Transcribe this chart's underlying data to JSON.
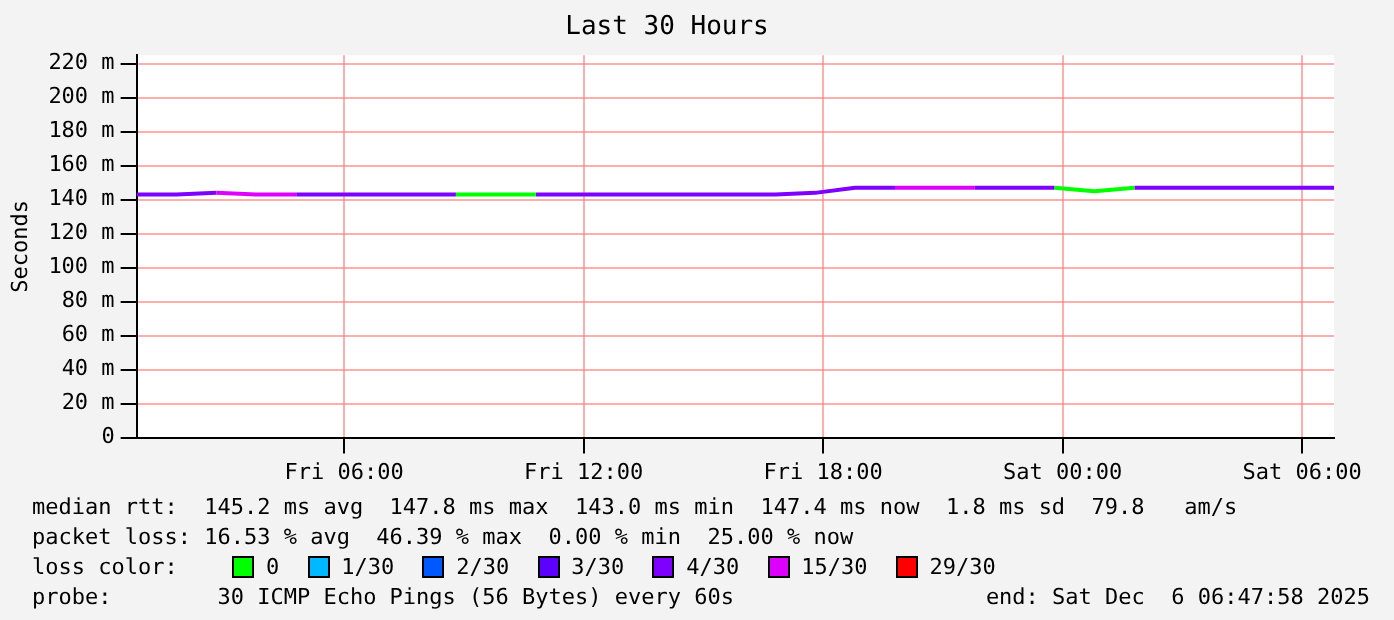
{
  "chart_data": {
    "type": "line",
    "title": "Last 30 Hours",
    "ylabel": "Seconds",
    "x": [
      "2025-12-05T00:48",
      "2025-12-05T01:48",
      "2025-12-05T02:48",
      "2025-12-05T03:48",
      "2025-12-05T04:48",
      "2025-12-05T05:48",
      "2025-12-05T06:48",
      "2025-12-05T07:48",
      "2025-12-05T08:48",
      "2025-12-05T09:48",
      "2025-12-05T10:48",
      "2025-12-05T11:48",
      "2025-12-05T12:48",
      "2025-12-05T13:48",
      "2025-12-05T14:48",
      "2025-12-05T15:48",
      "2025-12-05T16:48",
      "2025-12-05T17:48",
      "2025-12-05T18:48",
      "2025-12-05T19:48",
      "2025-12-05T20:48",
      "2025-12-05T21:48",
      "2025-12-05T22:48",
      "2025-12-05T23:48",
      "2025-12-06T00:48",
      "2025-12-06T01:48",
      "2025-12-06T02:48",
      "2025-12-06T03:48",
      "2025-12-06T04:48",
      "2025-12-06T05:48",
      "2025-12-06T06:48"
    ],
    "series": [
      {
        "name": "0",
        "color": "#00ff00",
        "values": [
          null,
          null,
          null,
          null,
          null,
          null,
          null,
          null,
          143,
          143,
          143,
          null,
          null,
          null,
          null,
          null,
          null,
          null,
          null,
          null,
          null,
          null,
          null,
          147,
          145,
          147,
          null,
          null,
          null,
          null,
          null
        ]
      },
      {
        "name": "1/30",
        "color": "#00b8ff",
        "values": [
          null,
          null,
          null,
          null,
          null,
          null,
          null,
          null,
          null,
          null,
          null,
          null,
          null,
          null,
          null,
          null,
          null,
          null,
          null,
          null,
          null,
          null,
          null,
          null,
          null,
          null,
          null,
          null,
          null,
          null,
          null
        ]
      },
      {
        "name": "2/30",
        "color": "#0059ff",
        "values": [
          null,
          null,
          null,
          null,
          null,
          null,
          null,
          null,
          null,
          null,
          null,
          null,
          null,
          null,
          null,
          null,
          null,
          null,
          null,
          null,
          null,
          null,
          null,
          null,
          null,
          null,
          null,
          null,
          null,
          null,
          null
        ]
      },
      {
        "name": "3/30",
        "color": "#5e00ff",
        "values": [
          null,
          null,
          null,
          null,
          null,
          null,
          null,
          null,
          null,
          null,
          null,
          null,
          null,
          null,
          null,
          null,
          null,
          null,
          null,
          null,
          null,
          null,
          null,
          null,
          null,
          null,
          null,
          null,
          null,
          null,
          null
        ]
      },
      {
        "name": "4/30",
        "color": "#7e00ff",
        "values": [
          143,
          143,
          144,
          null,
          143,
          143,
          143,
          143,
          143,
          null,
          143,
          143,
          143,
          143,
          143,
          143,
          143,
          144,
          147,
          147,
          null,
          147,
          147,
          147,
          null,
          147,
          147,
          147,
          147,
          147,
          147
        ]
      },
      {
        "name": "15/30",
        "color": "#dd00ff",
        "values": [
          null,
          null,
          144,
          143,
          143,
          null,
          null,
          null,
          null,
          null,
          null,
          null,
          null,
          null,
          null,
          null,
          null,
          null,
          null,
          147,
          147,
          147,
          null,
          null,
          null,
          null,
          null,
          null,
          null,
          null,
          null
        ]
      },
      {
        "name": "29/30",
        "color": "#ff0000",
        "values": [
          null,
          null,
          null,
          null,
          null,
          null,
          null,
          null,
          null,
          null,
          null,
          null,
          null,
          null,
          null,
          null,
          null,
          null,
          null,
          null,
          null,
          null,
          null,
          null,
          null,
          null,
          null,
          null,
          null,
          null,
          null
        ]
      }
    ],
    "xlim": [
      "2025-12-05T00:48",
      "2025-12-06T06:48"
    ],
    "xticks": [
      {
        "value": "2025-12-05T06:00",
        "label": "Fri 06:00"
      },
      {
        "value": "2025-12-05T12:00",
        "label": "Fri 12:00"
      },
      {
        "value": "2025-12-05T18:00",
        "label": "Fri 18:00"
      },
      {
        "value": "2025-12-06T00:00",
        "label": "Sat 00:00"
      },
      {
        "value": "2025-12-06T06:00",
        "label": "Sat 06:00"
      }
    ],
    "ylim": [
      0,
      225
    ],
    "yticks": [
      0,
      {
        "value": 20,
        "label": "20 m"
      },
      {
        "value": 40,
        "label": "40 m"
      },
      {
        "value": 60,
        "label": "60 m"
      },
      {
        "value": 80,
        "label": "80 m"
      },
      {
        "value": 100,
        "label": "100 m"
      },
      {
        "value": 120,
        "label": "120 m"
      },
      {
        "value": 140,
        "label": "140 m"
      },
      {
        "value": 160,
        "label": "160 m"
      },
      {
        "value": 180,
        "label": "180 m"
      },
      {
        "value": 200,
        "label": "200 m"
      },
      {
        "value": 220,
        "label": "220 m"
      }
    ],
    "grid": true,
    "legend": "bottom",
    "legend_title": "loss color:",
    "marker": "none",
    "line_style": "solid",
    "annotations": [
      "median rtt:  145.2 ms avg  147.8 ms max  143.0 ms min  147.4 ms now  1.8 ms sd  79.8   am/s",
      "packet loss: 16.53 % avg  46.39 % max  0.00 % min  25.00 % now",
      "probe:        30 ICMP Echo Pings (56 Bytes) every 60s",
      "end: Sat Dec  6 06:47:58 2025"
    ]
  }
}
